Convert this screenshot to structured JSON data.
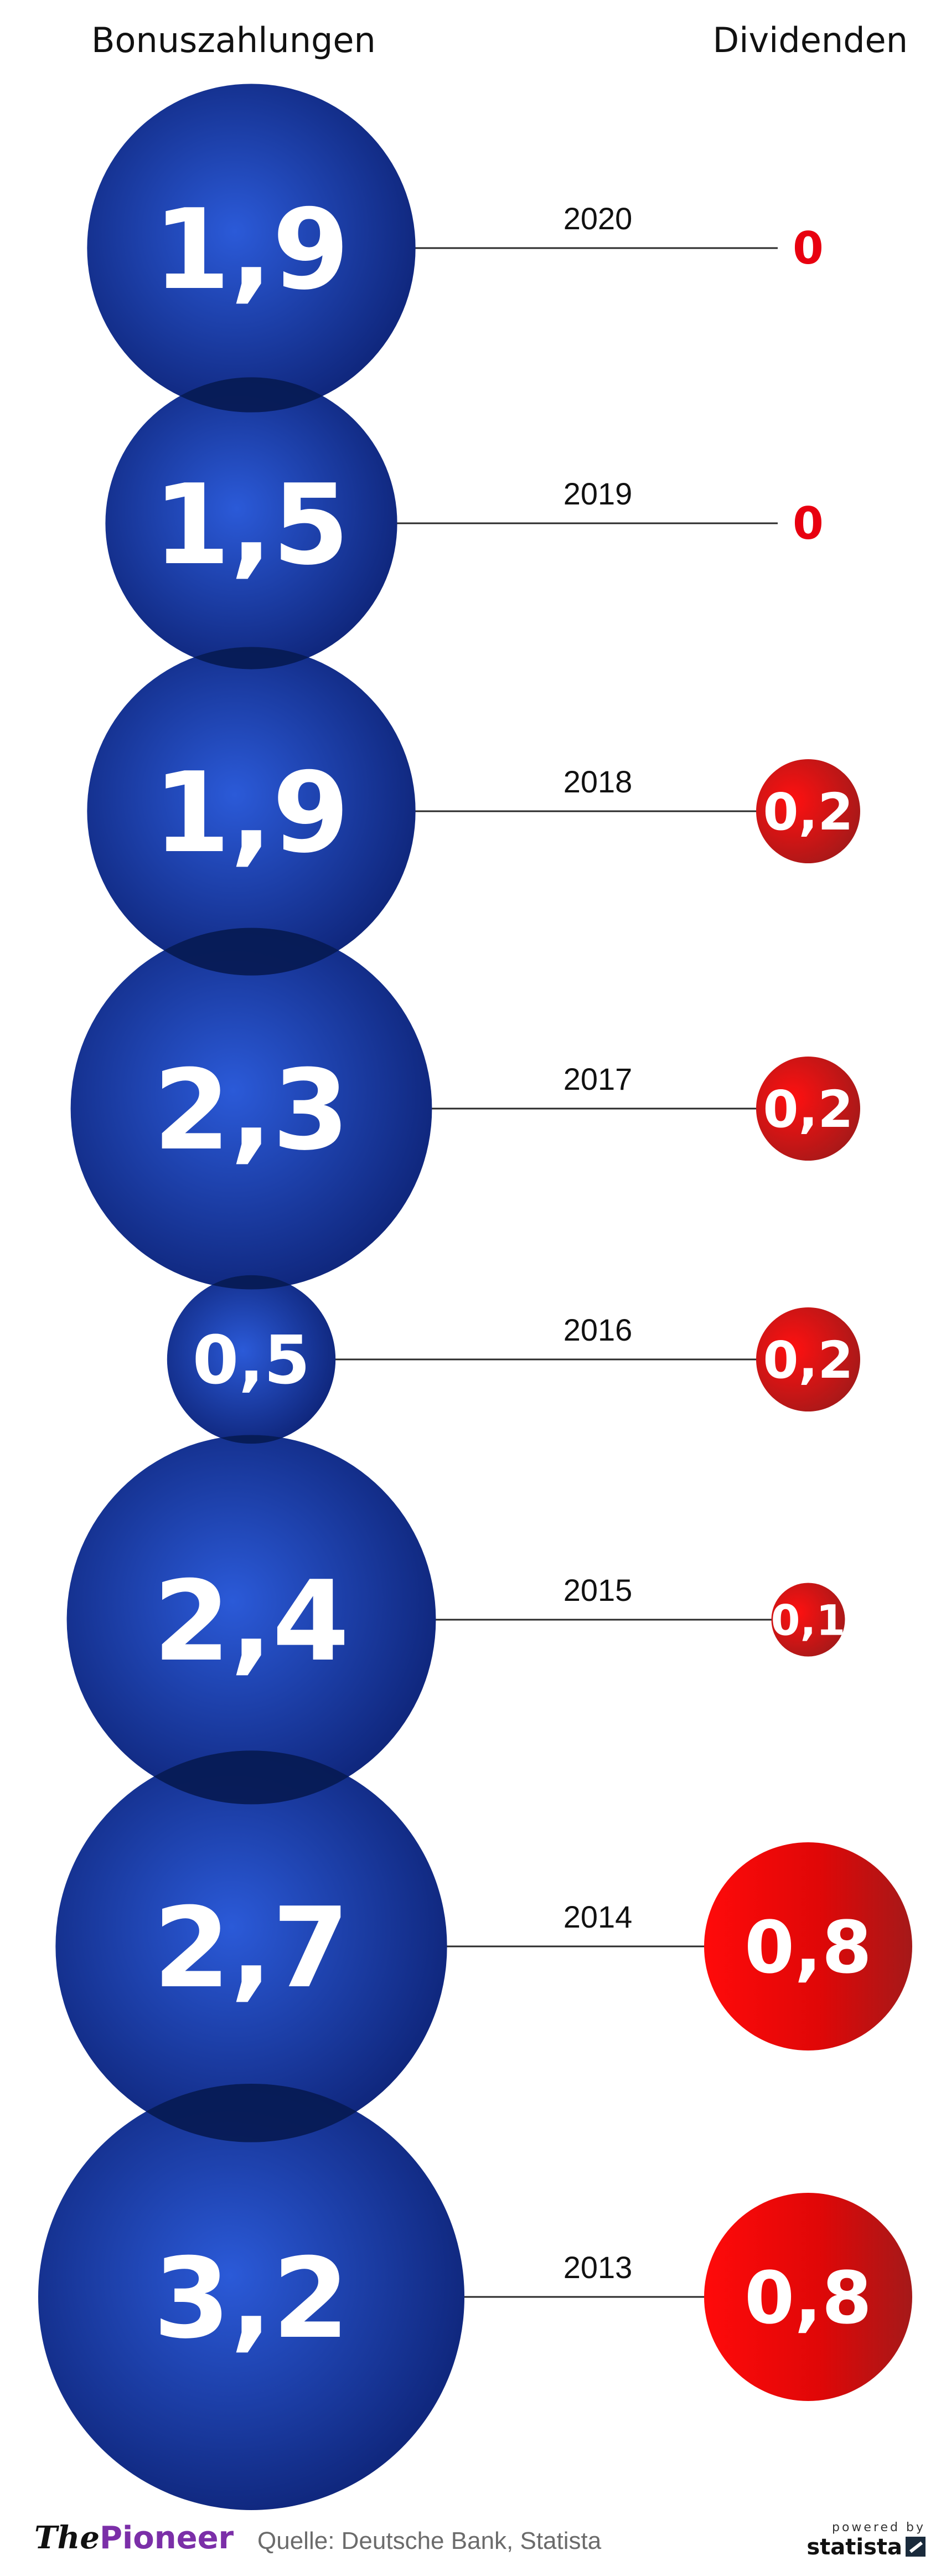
{
  "header": {
    "left": "Bonuszahlungen",
    "right": "Dividenden"
  },
  "chart_data": {
    "type": "bubble",
    "categories": [
      "2020",
      "2019",
      "2018",
      "2017",
      "2016",
      "2015",
      "2014",
      "2013"
    ],
    "series": [
      {
        "name": "Bonuszahlungen",
        "values": [
          1.9,
          1.5,
          1.9,
          2.3,
          0.5,
          2.4,
          2.7,
          3.2
        ],
        "color": "#1a3eb0"
      },
      {
        "name": "Dividenden",
        "values": [
          0,
          0,
          0.2,
          0.2,
          0.2,
          0.1,
          0.8,
          0.8
        ],
        "color": "#e8000f"
      }
    ],
    "labels": {
      "bonus": [
        "1,9",
        "1,5",
        "1,9",
        "2,3",
        "0,5",
        "2,4",
        "2,7",
        "3,2"
      ],
      "dividend": [
        "0",
        "0",
        "0,2",
        "0,2",
        "0,2",
        "0,1",
        "0,8",
        "0,8"
      ]
    }
  },
  "footer": {
    "brand_the": "The",
    "brand_pioneer": "Pioneer",
    "source": "Quelle: Deutsche Bank, Statista",
    "powered": "powered by",
    "statista": "statista"
  },
  "colors": {
    "bonus_light": "#2b5ad8",
    "bonus_dark": "#0e2478",
    "overlap": "#071a52",
    "dividend_light": "#ff0a0a",
    "dividend_dark": "#a51919"
  }
}
